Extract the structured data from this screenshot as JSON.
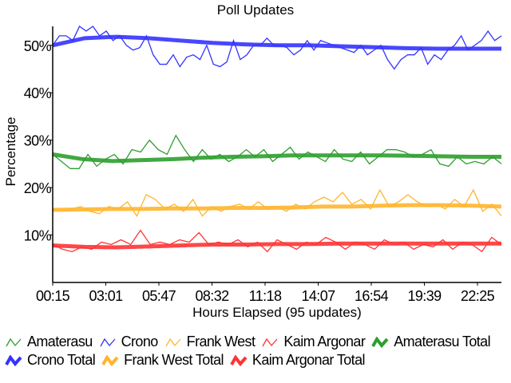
{
  "chart_data": {
    "type": "line",
    "title": "Poll Updates",
    "xlabel": "Hours Elapsed (95 updates)",
    "ylabel": "Percentage",
    "ylim": [
      0,
      54
    ],
    "yticks": [
      "10%",
      "20%",
      "30%",
      "40%",
      "50%"
    ],
    "ytick_values": [
      10,
      20,
      30,
      40,
      50
    ],
    "xticks": [
      "00:15",
      "03:01",
      "05:47",
      "08:32",
      "11:18",
      "14:07",
      "16:54",
      "19:39",
      "22:25"
    ],
    "grid": false,
    "legend_position": "bottom",
    "series": [
      {
        "name": "Amaterasu",
        "color": "#2e9e2e",
        "style": "thin",
        "values": [
          27,
          25.5,
          24,
          24,
          27,
          24.5,
          26,
          27,
          25,
          28,
          27.5,
          30,
          28,
          27,
          31,
          28,
          25.5,
          28,
          26,
          27,
          25.5,
          26.5,
          28,
          26.5,
          28,
          25.5,
          27,
          28.5,
          26,
          27.5,
          26.5,
          25.5,
          28,
          26,
          25.5,
          27.5,
          25,
          26.5,
          28,
          28,
          27.5,
          26.5,
          27,
          28,
          25,
          24.5,
          26.5,
          25,
          25.5,
          25,
          26.5,
          25
        ]
      },
      {
        "name": "Crono",
        "color": "#3333ff",
        "style": "thin",
        "values": [
          50,
          52,
          52,
          51,
          54,
          53,
          54,
          52,
          53,
          51,
          52,
          50,
          49,
          49.5,
          52,
          48,
          46,
          46,
          48,
          45.5,
          47.5,
          48,
          47,
          50,
          46,
          45.5,
          46.5,
          51,
          47,
          48,
          50,
          50,
          51.5,
          50,
          50,
          49.5,
          48,
          49,
          51,
          49,
          51,
          50.5,
          50,
          49.5,
          49,
          48.5,
          50,
          48,
          49,
          50,
          47,
          45,
          47,
          48,
          48,
          49.5,
          46,
          48,
          47,
          49,
          50,
          52,
          49,
          50,
          51,
          53,
          51,
          52
        ]
      },
      {
        "name": "Frank West",
        "color": "#ffb52e",
        "style": "thin",
        "values": [
          15.5,
          15,
          15.5,
          16,
          15,
          14.5,
          16,
          15.5,
          17,
          14,
          18.5,
          17.5,
          15.5,
          16.5,
          15,
          17.5,
          14,
          16,
          15,
          16,
          16.5,
          15.5,
          17,
          15.5,
          16,
          15,
          16.5,
          15.5,
          17,
          18,
          17,
          19,
          16.5,
          17.5,
          15.5,
          19.5,
          16,
          17,
          18.5,
          17,
          16,
          16.5,
          15.5,
          17.5,
          16,
          19.5,
          15,
          16.5,
          14
        ]
      },
      {
        "name": "Kaim Argonar",
        "color": "#ff3333",
        "style": "thin",
        "values": [
          8,
          7,
          6.5,
          7.5,
          7,
          8.5,
          8,
          9,
          8,
          11,
          8,
          8.5,
          8,
          9,
          8.5,
          10.5,
          8,
          8.5,
          8,
          9,
          7.5,
          8.5,
          6.5,
          9,
          8,
          7,
          8.5,
          8,
          9.5,
          8.5,
          7,
          8.5,
          8,
          7,
          9,
          8,
          8.5,
          7,
          8,
          7.5,
          9,
          7,
          8.5,
          8,
          6.5,
          9.5,
          8
        ]
      },
      {
        "name": "Amaterasu Total",
        "color": "#2e9e2e",
        "style": "thick",
        "values": [
          27,
          26,
          25.6,
          25.8,
          26,
          26.3,
          26.5,
          26.6,
          26.8,
          26.8,
          26.8,
          26.8,
          26.7,
          26.6,
          26.5,
          26.5
        ]
      },
      {
        "name": "Crono Total",
        "color": "#3333ff",
        "style": "thick",
        "values": [
          50,
          51.5,
          51.8,
          51.5,
          51,
          50.5,
          50.2,
          50,
          50,
          49.8,
          49.6,
          49.4,
          49.3,
          49.3,
          49.3
        ]
      },
      {
        "name": "Frank West Total",
        "color": "#ffb52e",
        "style": "thick",
        "values": [
          15.3,
          15.4,
          15.5,
          15.5,
          15.6,
          15.6,
          15.7,
          15.7,
          15.8,
          16,
          16,
          16.2,
          16.3,
          16.3,
          16.2,
          16
        ]
      },
      {
        "name": "Kaim Argonar Total",
        "color": "#ff3333",
        "style": "thick",
        "values": [
          7.8,
          7.5,
          7.4,
          7.6,
          7.8,
          8,
          8,
          8.1,
          8.1,
          8.2,
          8.2,
          8.2,
          8.2,
          8.2,
          8.2
        ]
      }
    ]
  }
}
